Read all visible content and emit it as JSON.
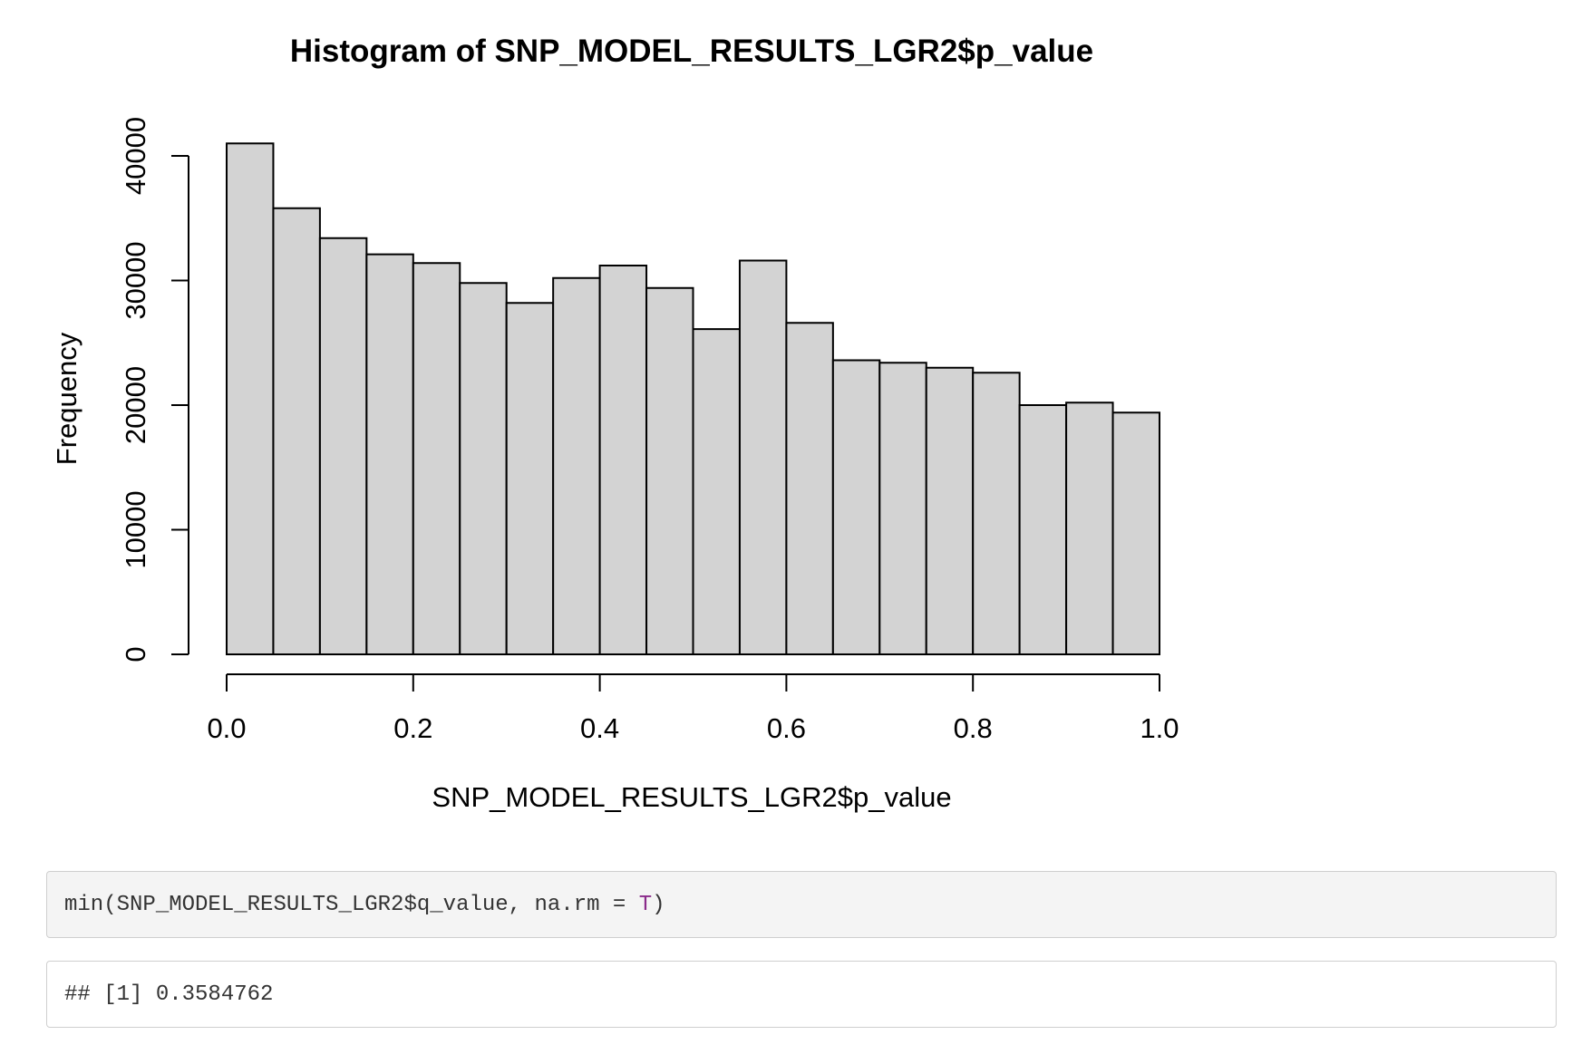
{
  "chart_data": {
    "type": "bar",
    "title": "Histogram of SNP_MODEL_RESULTS_LGR2$p_value",
    "xlabel": "SNP_MODEL_RESULTS_LGR2$p_value",
    "ylabel": "Frequency",
    "bin_edges": [
      0.0,
      0.05,
      0.1,
      0.15,
      0.2,
      0.25,
      0.3,
      0.35,
      0.4,
      0.45,
      0.5,
      0.55,
      0.6,
      0.65,
      0.7,
      0.75,
      0.8,
      0.85,
      0.9,
      0.95,
      1.0
    ],
    "values": [
      41000,
      35800,
      33400,
      32100,
      31400,
      29800,
      28200,
      30200,
      31200,
      29400,
      26100,
      31600,
      26600,
      23600,
      23400,
      23000,
      22600,
      20000,
      20200,
      19400
    ],
    "xlim": [
      0.0,
      1.0
    ],
    "ylim": [
      0,
      40000
    ],
    "x_ticks": [
      "0.0",
      "0.2",
      "0.4",
      "0.6",
      "0.8",
      "1.0"
    ],
    "y_ticks": [
      "0",
      "10000",
      "20000",
      "30000",
      "40000"
    ],
    "bar_color": "#d3d3d3",
    "grid": false
  },
  "code": {
    "input": {
      "before": "min(SNP_MODEL_RESULTS_LGR2$q_value, na.rm = ",
      "keyword": "T",
      "after": ")"
    },
    "output": "## [1] 0.3584762"
  }
}
